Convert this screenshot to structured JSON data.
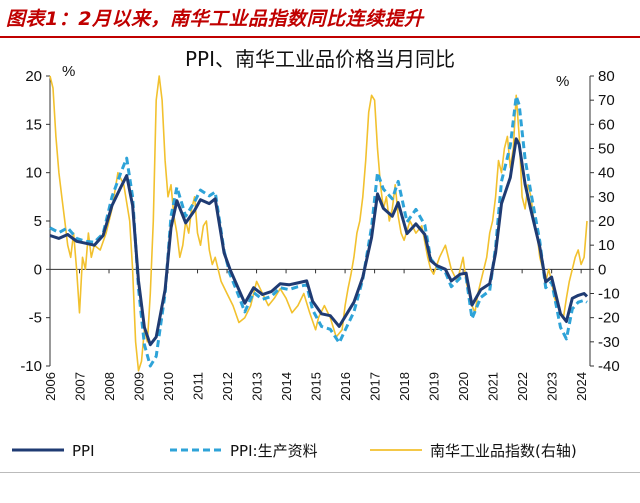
{
  "figure_title": "图表1：2月以来，南华工业品指数同比连续提升",
  "chart_data": {
    "type": "line",
    "title": "PPI、南华工业品价格当月同比",
    "ylabel_left": "%",
    "ylabel_right": "%",
    "ylim_left": [
      -10,
      20
    ],
    "ylim_right": [
      -40,
      80
    ],
    "yticks_left": [
      -10,
      -5,
      0,
      5,
      10,
      15,
      20
    ],
    "yticks_right": [
      -40,
      -30,
      -20,
      -10,
      0,
      10,
      20,
      30,
      40,
      50,
      60,
      70,
      80
    ],
    "xticks": [
      "2006",
      "2007",
      "2008",
      "2009",
      "2010",
      "2011",
      "2012",
      "2013",
      "2014",
      "2015",
      "2016",
      "2017",
      "2018",
      "2019",
      "2020",
      "2021",
      "2022",
      "2023",
      "2024"
    ],
    "x_range": [
      2006.0,
      2024.3
    ],
    "legend_placement": "bottom",
    "series": [
      {
        "name": "PPI",
        "axis": "left",
        "color": "#1f3b73",
        "style": "solid",
        "points": [
          [
            2006.0,
            3.5
          ],
          [
            2006.3,
            3.2
          ],
          [
            2006.6,
            3.6
          ],
          [
            2006.9,
            2.9
          ],
          [
            2007.2,
            2.7
          ],
          [
            2007.5,
            2.5
          ],
          [
            2007.8,
            3.5
          ],
          [
            2008.1,
            6.6
          ],
          [
            2008.4,
            8.5
          ],
          [
            2008.6,
            9.7
          ],
          [
            2008.8,
            6.6
          ],
          [
            2009.0,
            -1.2
          ],
          [
            2009.2,
            -6.0
          ],
          [
            2009.4,
            -7.8
          ],
          [
            2009.6,
            -7.0
          ],
          [
            2009.9,
            -2.1
          ],
          [
            2010.1,
            4.3
          ],
          [
            2010.3,
            7.1
          ],
          [
            2010.6,
            4.8
          ],
          [
            2010.9,
            6.1
          ],
          [
            2011.1,
            7.2
          ],
          [
            2011.4,
            6.8
          ],
          [
            2011.6,
            7.3
          ],
          [
            2011.9,
            1.7
          ],
          [
            2012.1,
            0.0
          ],
          [
            2012.3,
            -1.4
          ],
          [
            2012.6,
            -3.5
          ],
          [
            2012.9,
            -1.9
          ],
          [
            2013.2,
            -2.6
          ],
          [
            2013.5,
            -2.3
          ],
          [
            2013.8,
            -1.5
          ],
          [
            2014.1,
            -1.6
          ],
          [
            2014.4,
            -1.4
          ],
          [
            2014.7,
            -1.2
          ],
          [
            2014.9,
            -3.3
          ],
          [
            2015.2,
            -4.6
          ],
          [
            2015.5,
            -4.8
          ],
          [
            2015.8,
            -5.9
          ],
          [
            2016.0,
            -4.9
          ],
          [
            2016.3,
            -3.4
          ],
          [
            2016.6,
            -0.8
          ],
          [
            2016.9,
            3.3
          ],
          [
            2017.1,
            7.8
          ],
          [
            2017.3,
            6.3
          ],
          [
            2017.6,
            5.5
          ],
          [
            2017.8,
            6.9
          ],
          [
            2018.1,
            3.7
          ],
          [
            2018.4,
            4.7
          ],
          [
            2018.7,
            3.6
          ],
          [
            2018.9,
            0.9
          ],
          [
            2019.1,
            0.4
          ],
          [
            2019.4,
            0.0
          ],
          [
            2019.6,
            -1.2
          ],
          [
            2019.9,
            -0.5
          ],
          [
            2020.1,
            -0.4
          ],
          [
            2020.3,
            -3.7
          ],
          [
            2020.6,
            -2.1
          ],
          [
            2020.9,
            -1.5
          ],
          [
            2021.1,
            1.7
          ],
          [
            2021.3,
            6.8
          ],
          [
            2021.6,
            9.5
          ],
          [
            2021.8,
            13.5
          ],
          [
            2021.9,
            12.9
          ],
          [
            2022.1,
            8.8
          ],
          [
            2022.3,
            6.1
          ],
          [
            2022.6,
            2.3
          ],
          [
            2022.8,
            -1.3
          ],
          [
            2023.0,
            -0.8
          ],
          [
            2023.3,
            -4.6
          ],
          [
            2023.5,
            -5.4
          ],
          [
            2023.7,
            -3.0
          ],
          [
            2023.9,
            -2.7
          ],
          [
            2024.1,
            -2.5
          ],
          [
            2024.2,
            -2.8
          ]
        ]
      },
      {
        "name": "PPI:生产资料",
        "axis": "left",
        "color": "#2ea3d8",
        "style": "dashed",
        "points": [
          [
            2006.0,
            4.3
          ],
          [
            2006.3,
            3.8
          ],
          [
            2006.6,
            4.3
          ],
          [
            2006.9,
            3.2
          ],
          [
            2007.2,
            2.9
          ],
          [
            2007.5,
            2.8
          ],
          [
            2007.8,
            3.7
          ],
          [
            2008.1,
            7.5
          ],
          [
            2008.4,
            10.0
          ],
          [
            2008.6,
            11.5
          ],
          [
            2008.8,
            7.5
          ],
          [
            2009.0,
            -2.0
          ],
          [
            2009.2,
            -7.8
          ],
          [
            2009.4,
            -10.0
          ],
          [
            2009.6,
            -9.0
          ],
          [
            2009.9,
            -2.5
          ],
          [
            2010.1,
            5.5
          ],
          [
            2010.3,
            8.5
          ],
          [
            2010.6,
            5.5
          ],
          [
            2010.9,
            7.0
          ],
          [
            2011.1,
            8.2
          ],
          [
            2011.4,
            7.6
          ],
          [
            2011.6,
            8.0
          ],
          [
            2011.9,
            1.9
          ],
          [
            2012.1,
            -0.5
          ],
          [
            2012.3,
            -2.0
          ],
          [
            2012.6,
            -4.4
          ],
          [
            2012.9,
            -2.4
          ],
          [
            2013.2,
            -3.1
          ],
          [
            2013.5,
            -2.8
          ],
          [
            2013.8,
            -1.9
          ],
          [
            2014.1,
            -2.1
          ],
          [
            2014.4,
            -1.8
          ],
          [
            2014.7,
            -1.6
          ],
          [
            2014.9,
            -4.2
          ],
          [
            2015.2,
            -5.9
          ],
          [
            2015.5,
            -6.2
          ],
          [
            2015.8,
            -7.6
          ],
          [
            2016.0,
            -6.3
          ],
          [
            2016.3,
            -4.4
          ],
          [
            2016.6,
            -1.0
          ],
          [
            2016.9,
            4.4
          ],
          [
            2017.1,
            10.0
          ],
          [
            2017.3,
            8.3
          ],
          [
            2017.6,
            7.3
          ],
          [
            2017.8,
            9.1
          ],
          [
            2018.1,
            4.9
          ],
          [
            2018.4,
            6.2
          ],
          [
            2018.7,
            4.6
          ],
          [
            2018.9,
            1.1
          ],
          [
            2019.1,
            0.3
          ],
          [
            2019.4,
            -0.3
          ],
          [
            2019.6,
            -1.8
          ],
          [
            2019.9,
            -0.9
          ],
          [
            2020.1,
            -0.8
          ],
          [
            2020.3,
            -5.1
          ],
          [
            2020.6,
            -2.9
          ],
          [
            2020.9,
            -2.2
          ],
          [
            2021.1,
            2.3
          ],
          [
            2021.3,
            9.1
          ],
          [
            2021.6,
            12.8
          ],
          [
            2021.8,
            17.9
          ],
          [
            2021.9,
            17.0
          ],
          [
            2022.1,
            11.4
          ],
          [
            2022.3,
            7.9
          ],
          [
            2022.6,
            2.9
          ],
          [
            2022.8,
            -1.9
          ],
          [
            2023.0,
            -1.3
          ],
          [
            2023.3,
            -6.0
          ],
          [
            2023.5,
            -7.2
          ],
          [
            2023.7,
            -4.1
          ],
          [
            2023.9,
            -3.4
          ],
          [
            2024.1,
            -3.2
          ],
          [
            2024.2,
            -3.4
          ]
        ]
      },
      {
        "name": "南华工业品指数(右轴)",
        "axis": "right",
        "color": "#f2c12e",
        "style": "solid",
        "points": [
          [
            2006.0,
            80
          ],
          [
            2006.1,
            75
          ],
          [
            2006.2,
            55
          ],
          [
            2006.3,
            40
          ],
          [
            2006.4,
            30
          ],
          [
            2006.5,
            20
          ],
          [
            2006.6,
            10
          ],
          [
            2006.7,
            5
          ],
          [
            2006.8,
            15
          ],
          [
            2006.9,
            0
          ],
          [
            2007.0,
            -18
          ],
          [
            2007.1,
            5
          ],
          [
            2007.2,
            0
          ],
          [
            2007.3,
            15
          ],
          [
            2007.4,
            5
          ],
          [
            2007.5,
            10
          ],
          [
            2007.7,
            8
          ],
          [
            2007.9,
            15
          ],
          [
            2008.1,
            25
          ],
          [
            2008.3,
            40
          ],
          [
            2008.5,
            35
          ],
          [
            2008.7,
            20
          ],
          [
            2008.8,
            0
          ],
          [
            2008.9,
            -30
          ],
          [
            2009.0,
            -42
          ],
          [
            2009.1,
            -38
          ],
          [
            2009.2,
            -25
          ],
          [
            2009.3,
            -30
          ],
          [
            2009.4,
            -10
          ],
          [
            2009.5,
            20
          ],
          [
            2009.6,
            70
          ],
          [
            2009.7,
            80
          ],
          [
            2009.8,
            70
          ],
          [
            2009.9,
            45
          ],
          [
            2010.0,
            30
          ],
          [
            2010.1,
            35
          ],
          [
            2010.2,
            22
          ],
          [
            2010.3,
            15
          ],
          [
            2010.4,
            5
          ],
          [
            2010.5,
            10
          ],
          [
            2010.6,
            20
          ],
          [
            2010.7,
            15
          ],
          [
            2010.8,
            25
          ],
          [
            2010.9,
            30
          ],
          [
            2011.0,
            15
          ],
          [
            2011.1,
            10
          ],
          [
            2011.2,
            18
          ],
          [
            2011.3,
            20
          ],
          [
            2011.4,
            8
          ],
          [
            2011.5,
            2
          ],
          [
            2011.6,
            5
          ],
          [
            2011.8,
            -5
          ],
          [
            2012.0,
            -10
          ],
          [
            2012.2,
            -15
          ],
          [
            2012.4,
            -22
          ],
          [
            2012.6,
            -20
          ],
          [
            2012.8,
            -15
          ],
          [
            2013.0,
            -5
          ],
          [
            2013.2,
            -10
          ],
          [
            2013.4,
            -15
          ],
          [
            2013.6,
            -12
          ],
          [
            2013.8,
            -8
          ],
          [
            2014.0,
            -12
          ],
          [
            2014.2,
            -18
          ],
          [
            2014.4,
            -15
          ],
          [
            2014.6,
            -10
          ],
          [
            2014.8,
            -18
          ],
          [
            2015.0,
            -25
          ],
          [
            2015.1,
            -20
          ],
          [
            2015.3,
            -15
          ],
          [
            2015.5,
            -20
          ],
          [
            2015.7,
            -28
          ],
          [
            2015.9,
            -25
          ],
          [
            2016.0,
            -15
          ],
          [
            2016.1,
            -8
          ],
          [
            2016.2,
            -2
          ],
          [
            2016.3,
            5
          ],
          [
            2016.4,
            15
          ],
          [
            2016.5,
            20
          ],
          [
            2016.6,
            30
          ],
          [
            2016.7,
            45
          ],
          [
            2016.8,
            65
          ],
          [
            2016.9,
            72
          ],
          [
            2017.0,
            70
          ],
          [
            2017.1,
            50
          ],
          [
            2017.2,
            35
          ],
          [
            2017.3,
            25
          ],
          [
            2017.4,
            30
          ],
          [
            2017.5,
            20
          ],
          [
            2017.6,
            25
          ],
          [
            2017.7,
            35
          ],
          [
            2017.8,
            22
          ],
          [
            2017.9,
            15
          ],
          [
            2018.0,
            12
          ],
          [
            2018.2,
            20
          ],
          [
            2018.4,
            15
          ],
          [
            2018.6,
            18
          ],
          [
            2018.8,
            5
          ],
          [
            2018.9,
            0
          ],
          [
            2019.0,
            -2
          ],
          [
            2019.2,
            5
          ],
          [
            2019.4,
            10
          ],
          [
            2019.6,
            0
          ],
          [
            2019.8,
            -5
          ],
          [
            2020.0,
            5
          ],
          [
            2020.1,
            -5
          ],
          [
            2020.3,
            -15
          ],
          [
            2020.4,
            -18
          ],
          [
            2020.5,
            -10
          ],
          [
            2020.6,
            -5
          ],
          [
            2020.8,
            5
          ],
          [
            2020.9,
            15
          ],
          [
            2021.0,
            20
          ],
          [
            2021.1,
            30
          ],
          [
            2021.2,
            45
          ],
          [
            2021.3,
            40
          ],
          [
            2021.4,
            50
          ],
          [
            2021.5,
            55
          ],
          [
            2021.6,
            42
          ],
          [
            2021.7,
            50
          ],
          [
            2021.8,
            72
          ],
          [
            2021.9,
            55
          ],
          [
            2022.0,
            30
          ],
          [
            2022.1,
            25
          ],
          [
            2022.2,
            35
          ],
          [
            2022.3,
            30
          ],
          [
            2022.4,
            20
          ],
          [
            2022.5,
            15
          ],
          [
            2022.6,
            5
          ],
          [
            2022.7,
            0
          ],
          [
            2022.8,
            -5
          ],
          [
            2022.9,
            0
          ],
          [
            2023.0,
            -5
          ],
          [
            2023.1,
            -12
          ],
          [
            2023.2,
            -15
          ],
          [
            2023.3,
            -18
          ],
          [
            2023.4,
            -20
          ],
          [
            2023.5,
            -12
          ],
          [
            2023.6,
            -5
          ],
          [
            2023.7,
            0
          ],
          [
            2023.8,
            5
          ],
          [
            2023.9,
            8
          ],
          [
            2024.0,
            2
          ],
          [
            2024.1,
            5
          ],
          [
            2024.2,
            20
          ]
        ]
      }
    ]
  }
}
